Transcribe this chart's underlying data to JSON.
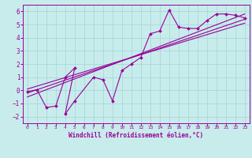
{
  "title": "",
  "xlabel": "Windchill (Refroidissement éolien,°C)",
  "ylabel": "",
  "bg_color": "#c8ecec",
  "grid_color": "#a8d8d8",
  "line_color": "#990099",
  "xlim": [
    -0.5,
    23.5
  ],
  "ylim": [
    -2.5,
    6.5
  ],
  "xticks": [
    0,
    1,
    2,
    3,
    4,
    5,
    6,
    7,
    8,
    9,
    10,
    11,
    12,
    13,
    14,
    15,
    16,
    17,
    18,
    19,
    20,
    21,
    22,
    23
  ],
  "yticks": [
    -2,
    -1,
    0,
    1,
    2,
    3,
    4,
    5,
    6
  ],
  "data_x": [
    0,
    1,
    2,
    3,
    4,
    5,
    4,
    5,
    7,
    8,
    9,
    10,
    11,
    12,
    13,
    14,
    15,
    16,
    17,
    18,
    19,
    20,
    21,
    22,
    23
  ],
  "data_y": [
    -0.1,
    0.05,
    -1.3,
    -1.2,
    1.0,
    1.7,
    -1.8,
    -0.8,
    1.0,
    0.8,
    -0.8,
    1.5,
    2.0,
    2.5,
    4.3,
    4.5,
    6.1,
    4.8,
    4.7,
    4.7,
    5.3,
    5.8,
    5.8,
    5.7,
    5.5
  ],
  "trend1_x": [
    0,
    23
  ],
  "trend1_y": [
    -0.2,
    5.4
  ],
  "trend2_x": [
    0,
    23
  ],
  "trend2_y": [
    -0.5,
    5.8
  ],
  "trend3_x": [
    0,
    23
  ],
  "trend3_y": [
    0.1,
    5.1
  ]
}
